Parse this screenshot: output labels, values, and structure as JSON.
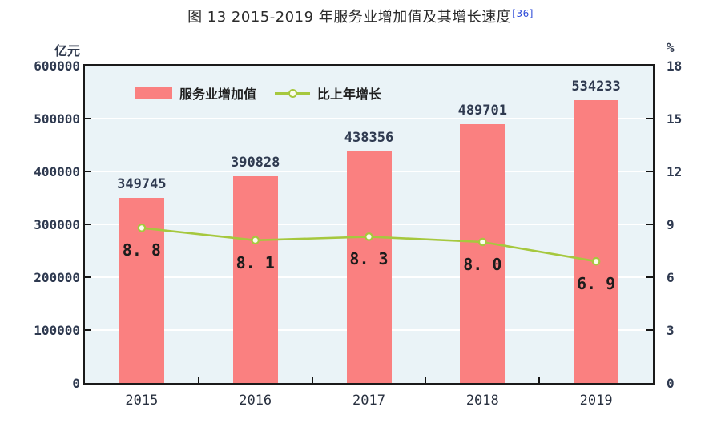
{
  "title": {
    "text": "图 13  2015-2019 年服务业增加值及其增长速度",
    "footnote_ref": "[36]"
  },
  "chart_data": {
    "type": "bar",
    "title": "图 13  2015-2019 年服务业增加值及其增长速度",
    "categories": [
      "2015",
      "2016",
      "2017",
      "2018",
      "2019"
    ],
    "series": [
      {
        "name": "服务业增加值",
        "type": "bar",
        "axis": "left",
        "values": [
          349745,
          390828,
          438356,
          489701,
          534233
        ],
        "value_labels": [
          "349745",
          "390828",
          "438356",
          "489701",
          "534233"
        ],
        "color": "#fa8080"
      },
      {
        "name": "比上年增长",
        "type": "line",
        "axis": "right",
        "values": [
          8.8,
          8.1,
          8.3,
          8.0,
          6.9
        ],
        "value_labels": [
          "8. 8",
          "8. 1",
          "8. 3",
          "8. 0",
          "6. 9"
        ],
        "color": "#a6c83e",
        "marker": "circle",
        "marker_fill": "#fbfcec"
      }
    ],
    "left_axis": {
      "unit": "亿元",
      "ticks": [
        "0",
        "100000",
        "200000",
        "300000",
        "400000",
        "500000",
        "600000"
      ],
      "range": [
        0,
        600000
      ]
    },
    "right_axis": {
      "unit": "%",
      "ticks": [
        "0",
        "3",
        "6",
        "9",
        "12",
        "15",
        "18"
      ],
      "range": [
        0,
        18
      ]
    },
    "grid": true,
    "grid_color": "#ffffff",
    "legend_position": "top-left-inside",
    "plot_bg": "#eaf3f7",
    "border_color": "#1a1a1a",
    "bar_label_color": "#2f3a50",
    "growth_label_color": "#1c1c1c",
    "footnote_color": "#2e4bd8"
  }
}
